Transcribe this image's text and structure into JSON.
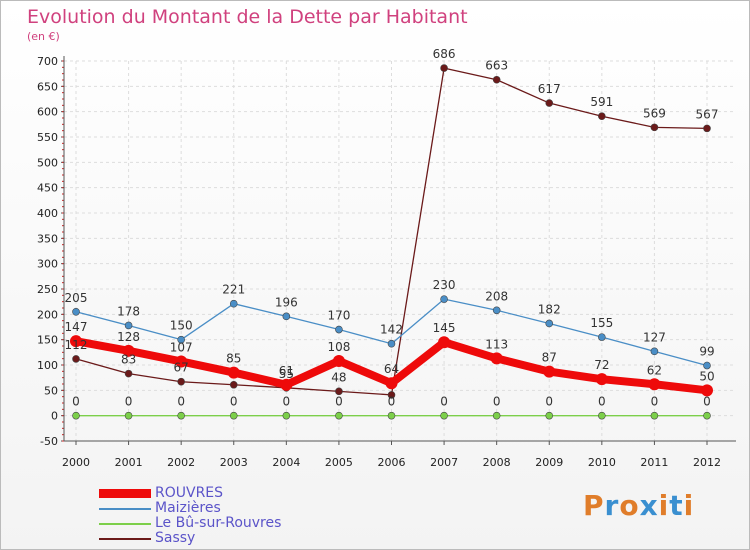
{
  "header": {
    "title": "Evolution du Montant de la Dette par Habitant",
    "subtitle": "(en €)"
  },
  "logo": {
    "text": "Proxiti",
    "colors": [
      "#e07d2a",
      "#3a8fd0",
      "#e07d2a",
      "#3a8fd0",
      "#e07d2a",
      "#3a8fd0",
      "#e07d2a"
    ]
  },
  "chart_data": {
    "type": "line",
    "categories": [
      "2000",
      "2001",
      "2002",
      "2003",
      "2004",
      "2005",
      "2006",
      "2007",
      "2008",
      "2009",
      "2010",
      "2011",
      "2012"
    ],
    "ylim": [
      -50,
      700
    ],
    "yticks": [
      -50,
      0,
      50,
      100,
      150,
      200,
      250,
      300,
      350,
      400,
      450,
      500,
      550,
      600,
      650,
      700
    ],
    "grid": true,
    "legend_position": "bottom-left",
    "series": [
      {
        "name": "ROUVRES",
        "color": "#ee0a0a",
        "values": [
          147,
          128,
          107,
          85,
          61,
          108,
          64,
          145,
          113,
          87,
          72,
          62,
          50
        ],
        "labels": [
          "147",
          "128",
          "107",
          "85",
          "61",
          "108",
          "64",
          "145",
          "113",
          "87",
          "72",
          "62",
          "50"
        ]
      },
      {
        "name": "Maizières",
        "color": "#4a8ec6",
        "values": [
          205,
          178,
          150,
          221,
          196,
          170,
          142,
          230,
          208,
          182,
          155,
          127,
          99
        ],
        "labels": [
          "205",
          "178",
          "150",
          "221",
          "196",
          "170",
          "142",
          "230",
          "208",
          "182",
          "155",
          "127",
          "99"
        ]
      },
      {
        "name": "Le Bû-sur-Rouvres",
        "color": "#7ccf4a",
        "values": [
          0,
          0,
          0,
          0,
          0,
          0,
          0,
          0,
          0,
          0,
          0,
          0,
          0
        ],
        "labels": [
          "0",
          "0",
          "0",
          "0",
          "0",
          "0",
          "0",
          "0",
          "0",
          "0",
          "0",
          "0",
          "0"
        ]
      },
      {
        "name": "Sassy",
        "color": "#6b1a1a",
        "values": [
          112,
          83,
          67,
          61,
          55,
          48,
          41,
          686,
          663,
          617,
          591,
          569,
          567
        ],
        "labels": [
          "112",
          "83",
          "67",
          "",
          "55",
          "48",
          "",
          "686",
          "663",
          "617",
          "591",
          "569",
          "567"
        ]
      }
    ]
  }
}
